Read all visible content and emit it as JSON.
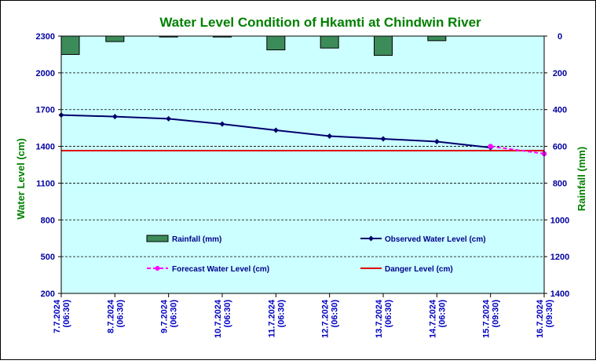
{
  "chart_data": {
    "type": "bar+line",
    "title": "Water Level Condition of Hkamti at Chindwin River",
    "ylabel_left": "Water Level (cm)",
    "ylabel_right": "Rainfall (mm)",
    "ylim_left": [
      200,
      2300
    ],
    "ylim_right": [
      1400,
      0
    ],
    "yticks_left": [
      "2300",
      "2000",
      "1700",
      "1400",
      "1100",
      "800",
      "500",
      "200"
    ],
    "yticks_right": [
      "0",
      "200",
      "400",
      "600",
      "800",
      "1000",
      "1200",
      "1400"
    ],
    "categories": [
      [
        "7.7.2024",
        "(06:30)"
      ],
      [
        "8.7.2024",
        "(06:30)"
      ],
      [
        "9.7.2024",
        "(06:30)"
      ],
      [
        "10.7.2024",
        "(06:30)"
      ],
      [
        "11.7.2024",
        "(06:30)"
      ],
      [
        "12.7.2024",
        "(06:30)"
      ],
      [
        "13.7.2024",
        "(06:30)"
      ],
      [
        "14.7.2024",
        "(06:30)"
      ],
      [
        "15.7.2024",
        "(09:30)"
      ],
      [
        "16.7.2024",
        "(09:30)"
      ]
    ],
    "rainfall": {
      "name": "Rainfall (mm)",
      "values": [
        100,
        30,
        5,
        5,
        75,
        65,
        105,
        25,
        null,
        null
      ],
      "color": "#3c8c5a"
    },
    "observed": {
      "name": "Observed Water Level (cm)",
      "values": [
        1656,
        1643,
        1625,
        1582,
        1532,
        1484,
        1461,
        1439,
        1390,
        null
      ],
      "color": "#00006e"
    },
    "forecast": {
      "name": "Forecast Water Level (cm)",
      "values": [
        null,
        null,
        null,
        null,
        null,
        null,
        null,
        null,
        1400,
        1340
      ],
      "color": "#ff00ff"
    },
    "danger": {
      "name": "Danger Level (cm)",
      "value": 1365,
      "color": "#e00000"
    },
    "background_color": "#ccffff",
    "grid": true
  }
}
